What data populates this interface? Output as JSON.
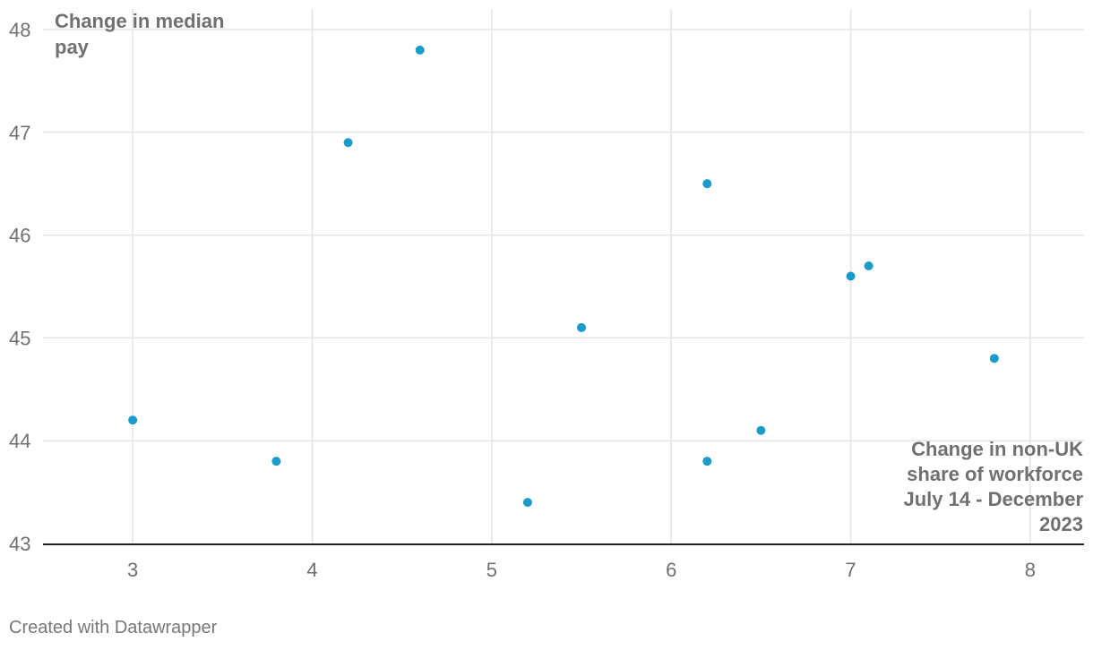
{
  "chart_data": {
    "type": "scatter",
    "title": "",
    "ylabel_lines": [
      "Change in median",
      "pay"
    ],
    "xlabel_lines": [
      "Change in non-UK",
      "share of workforce",
      "July 14 - December",
      "2023"
    ],
    "xlim": [
      2.5,
      8.3
    ],
    "ylim": [
      43,
      48.2
    ],
    "x_ticks": [
      3,
      4,
      5,
      6,
      7,
      8
    ],
    "y_ticks": [
      43,
      44,
      45,
      46,
      47,
      48
    ],
    "grid": true,
    "point_color": "#1a9bc9",
    "points": [
      {
        "x": 3.0,
        "y": 44.2
      },
      {
        "x": 3.8,
        "y": 43.8
      },
      {
        "x": 4.2,
        "y": 46.9
      },
      {
        "x": 4.6,
        "y": 47.8
      },
      {
        "x": 5.2,
        "y": 43.4
      },
      {
        "x": 5.5,
        "y": 45.1
      },
      {
        "x": 6.2,
        "y": 46.5
      },
      {
        "x": 6.2,
        "y": 43.8
      },
      {
        "x": 6.5,
        "y": 44.1
      },
      {
        "x": 7.0,
        "y": 45.6
      },
      {
        "x": 7.1,
        "y": 45.7
      },
      {
        "x": 7.8,
        "y": 44.8
      }
    ]
  },
  "footer": {
    "credit": "Created with Datawrapper"
  }
}
